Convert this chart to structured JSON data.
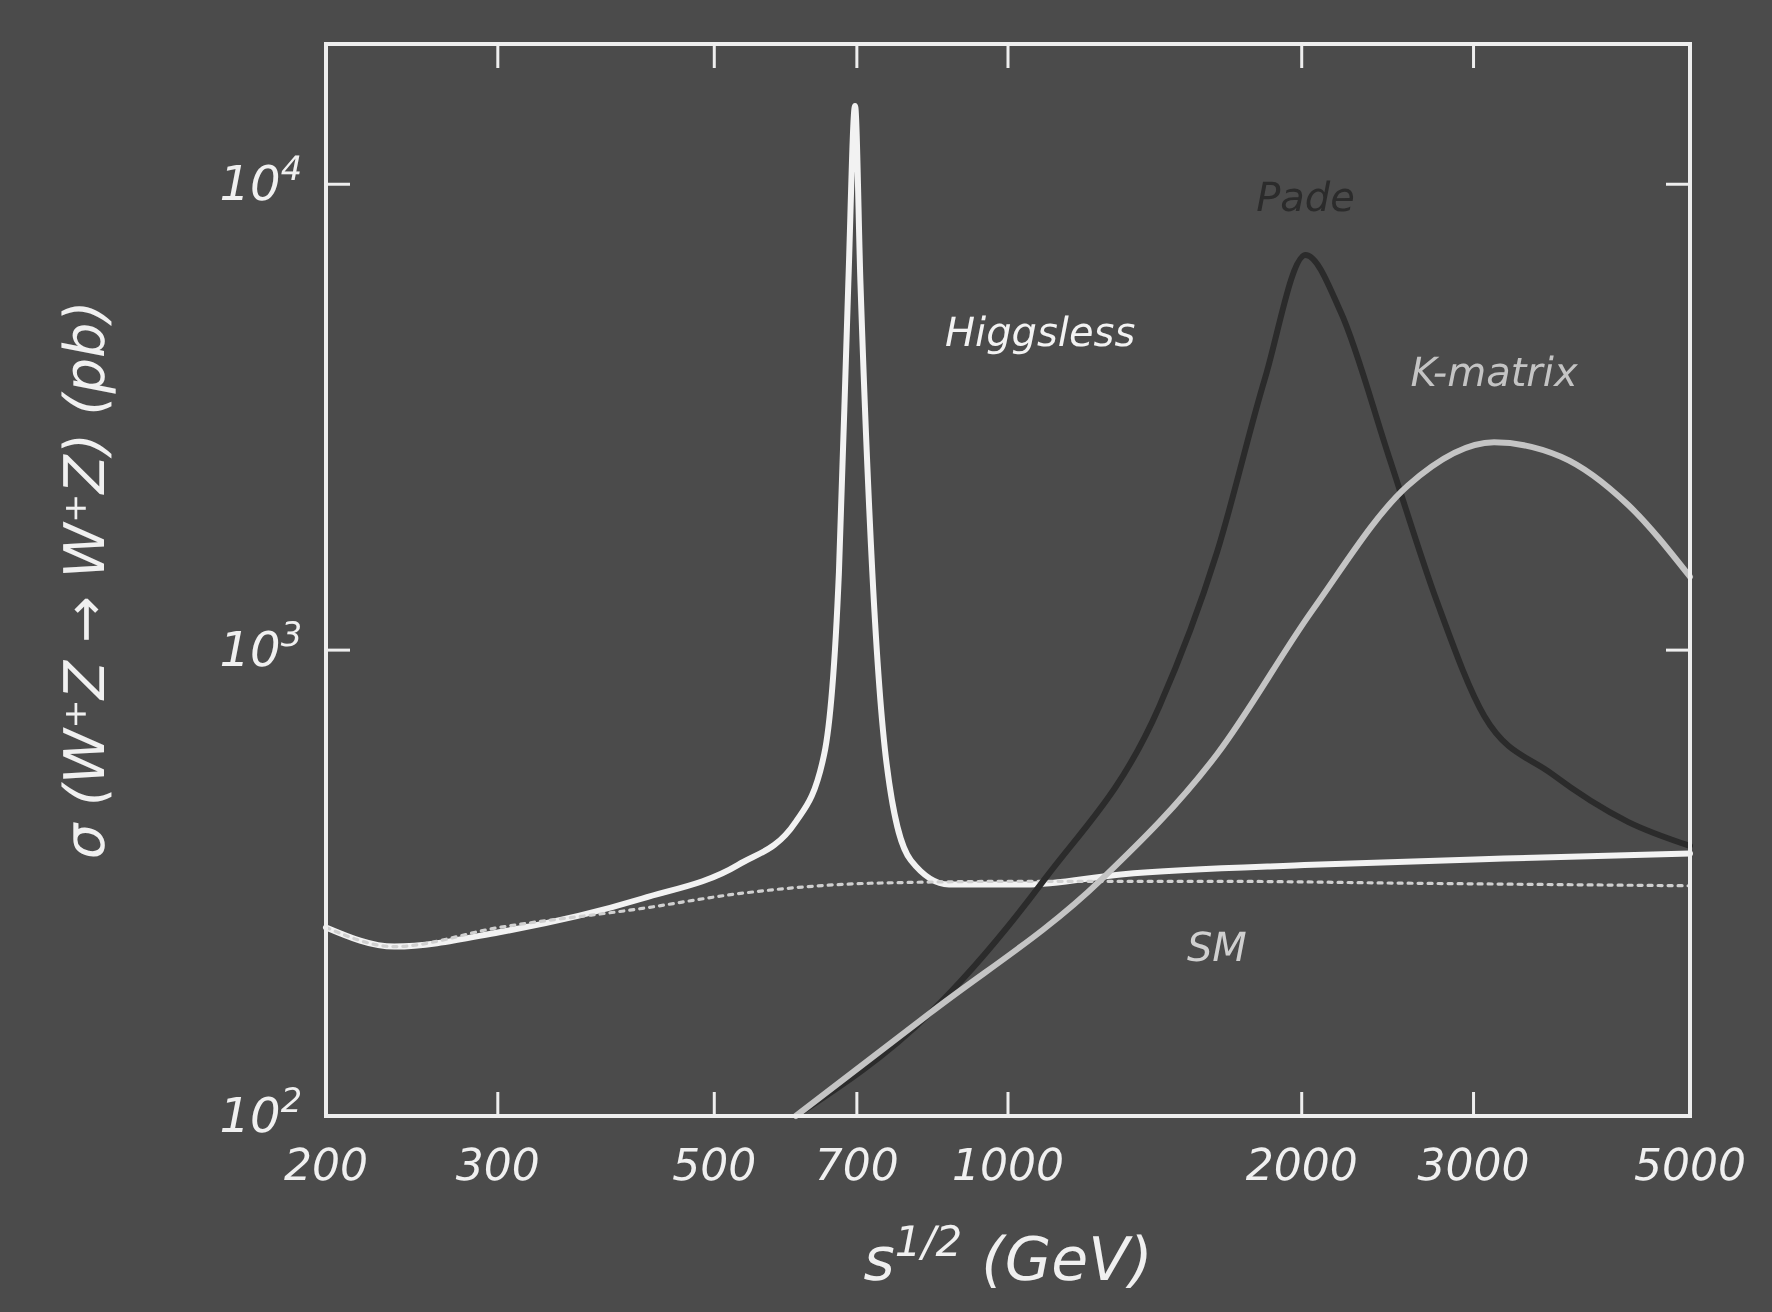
{
  "chart_data": {
    "type": "line",
    "xlabel": "s$^{1/2}$ (GeV)",
    "ylabel": "σ (W⁺Z → W⁺Z) (pb)",
    "log": "xy",
    "grid": false,
    "marker": "none",
    "xlim": [
      200,
      5000
    ],
    "xticks": [
      200,
      300,
      500,
      700,
      1000,
      2000,
      3000,
      5000
    ],
    "ylim": [
      100,
      20000
    ],
    "yticks": [
      {
        "value": 100,
        "label": "10$^{2}$"
      },
      {
        "value": 1000,
        "label": "10$^{3}$"
      },
      {
        "value": 10000,
        "label": "10$^{4}$"
      }
    ],
    "series": [
      {
        "name": "Higgsless",
        "color": "#f2f2f2",
        "line_style": "solid",
        "x": [
          200,
          235,
          301,
          422,
          529,
          606,
          648,
          671,
          686,
          697,
          706,
          726,
          751,
          795,
          870,
          1042,
          1305,
          2051,
          3221,
          5000
        ],
        "values": [
          254,
          231,
          248,
          293,
          346,
          428,
          597,
          1471,
          6116,
          14730,
          6116,
          1471,
          569,
          354,
          314,
          314,
          330,
          346,
          357,
          366
        ]
      },
      {
        "name": "SM",
        "color": "#d0d0d0",
        "line_style": "dotted",
        "x": [
          200,
          235,
          301,
          422,
          529,
          726,
          1042,
          1637,
          2570,
          5000
        ],
        "values": [
          254,
          231,
          254,
          279,
          300,
          316,
          319,
          319,
          316,
          312
        ]
      },
      {
        "name": "Pade",
        "color": "#2b2b2b",
        "line_style": "solid",
        "x": [
          606,
          831,
          1090,
          1429,
          1637,
          1832,
          2018,
          2194,
          2457,
          2750,
          3078,
          3606,
          4319,
          5000
        ],
        "values": [
          100,
          166,
          322,
          757,
          1618,
          3802,
          7047,
          5304,
          2601,
          1276,
          721,
          543,
          428,
          380
        ]
      },
      {
        "name": "K-matrix",
        "color": "#c4c4c4",
        "line_style": "solid",
        "x": [
          606,
          831,
          1247,
          1637,
          2051,
          2570,
          3149,
          3688,
          4319,
          5000
        ],
        "values": [
          100,
          166,
          322,
          597,
          1217,
          2256,
          2793,
          2601,
          2051,
          1437
        ]
      }
    ]
  }
}
